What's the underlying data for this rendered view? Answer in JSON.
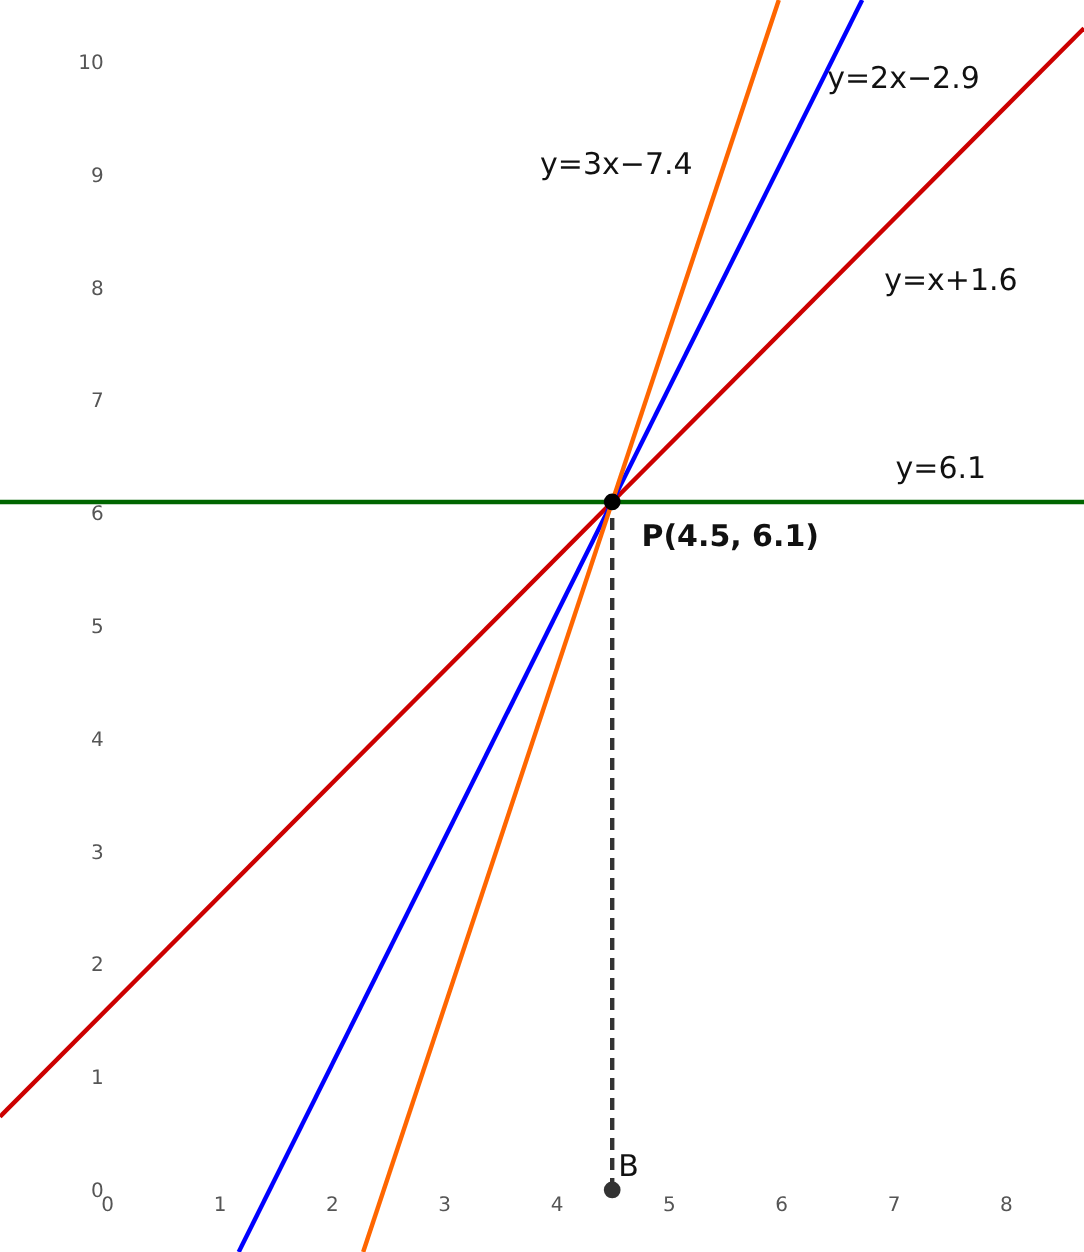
{
  "chart_data": {
    "type": "line",
    "xlim": [
      -0.95,
      8.7
    ],
    "ylim": [
      -0.55,
      10.55
    ],
    "xticks": [
      0,
      1,
      2,
      3,
      4,
      5,
      6,
      7,
      8
    ],
    "yticks": [
      0,
      1,
      2,
      3,
      4,
      5,
      6,
      7,
      8,
      9,
      10
    ],
    "grid": false,
    "series": [
      {
        "name": "y=x+1.6",
        "color": "#cc0000",
        "x": [
          -0.95,
          8.7
        ],
        "values": [
          0.65,
          10.3
        ]
      },
      {
        "name": "y=2x−2.9",
        "color": "#0000ff",
        "x": [
          1.175,
          6.725
        ],
        "values": [
          -0.55,
          10.55
        ]
      },
      {
        "name": "y=3x−7.4",
        "color": "#ff6600",
        "x": [
          2.283,
          5.983
        ],
        "values": [
          -0.55,
          10.55
        ]
      },
      {
        "name": "y=6.1",
        "color": "#006600",
        "x": [
          -0.95,
          8.7
        ],
        "values": [
          6.1,
          6.1
        ]
      },
      {
        "color": "#333333",
        "x": [
          4.5,
          4.5
        ],
        "values": [
          0,
          6.1
        ],
        "line_style": "dashed"
      },
      {
        "name": "P(4.5, 6.1)",
        "type": "scatter",
        "color": "#000000",
        "marker": "circle",
        "x": [
          4.5
        ],
        "values": [
          6.1
        ]
      },
      {
        "name": "B",
        "type": "scatter",
        "color": "#333333",
        "marker": "circle",
        "x": [
          4.5
        ],
        "values": [
          0
        ]
      }
    ]
  }
}
